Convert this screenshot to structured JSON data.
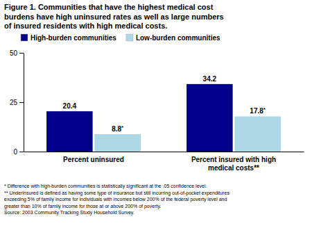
{
  "chart_data": {
    "type": "bar",
    "title": "Figure 1. Communities that have the highest medical cost\nburdens have high uninsured rates as well as large numbers\nof insured residents with high medical costs.",
    "categories": [
      "Percent uninsured",
      "Percent insured with high\nmedical costs**"
    ],
    "series": [
      {
        "name": "High-burden communities",
        "color": "#00008B",
        "values": [
          20.4,
          34.2
        ]
      },
      {
        "name": "Low-burden communities",
        "color": "#ADD8E6",
        "values": [
          8.8,
          17.8
        ],
        "value_labels": [
          "8.8*",
          "17.8*"
        ]
      }
    ],
    "ylim": [
      0,
      50
    ],
    "yticks": [
      0,
      25,
      50
    ],
    "legend": "upper left",
    "data_labels": true,
    "annotations": [
      "* Difference with high-burden communities is statistically significant at the .05 confidence level.",
      "** Underinsured is defined as having some type of insurance but still incurring out-of-pocket expenditures",
      "exceeding 5% of family income for individuals with incomes below 200% of the federal poverty level and",
      "greater than 10% of family income for those at or above 200% of poverty.",
      "Source: 2003 Community Tracking Study Household Survey."
    ]
  }
}
